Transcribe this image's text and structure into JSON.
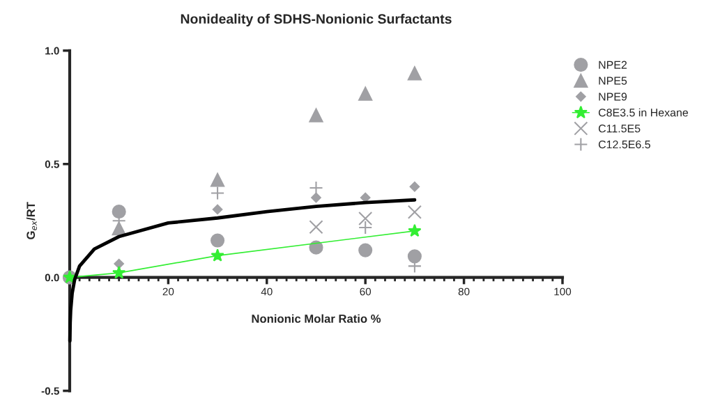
{
  "chart_data": {
    "type": "scatter",
    "title": "Nonideality of SDHS-Nonionic Surfactants",
    "xlabel": "Nonionic Molar Ratio %",
    "ylabel": "G$_{ex}$/RT",
    "xlim": [
      0,
      100
    ],
    "xticks": [
      20,
      40,
      60,
      80,
      100
    ],
    "ylim": [
      -0.5,
      1.0
    ],
    "yticks": [
      {
        "value": -0.5,
        "label": "-0.5"
      },
      {
        "value": 0,
        "label": "0.0"
      },
      {
        "value": 0.5,
        "label": "0.5"
      },
      {
        "value": 1.0,
        "label": "1.0"
      }
    ],
    "grid": false,
    "legend": "top right",
    "series": [
      {
        "name": "NPE2",
        "marker": "circle",
        "color": "#a0a0a4",
        "x": [
          0,
          10,
          30,
          50,
          60,
          70
        ],
        "values": [
          0,
          0.29,
          0.163,
          0.132,
          0.12,
          0.093
        ]
      },
      {
        "name": "NPE5",
        "marker": "triangle",
        "color": "#a0a0a4",
        "x": [
          10,
          30,
          50,
          60,
          70
        ],
        "values": [
          0.216,
          0.43,
          0.715,
          0.81,
          0.9
        ]
      },
      {
        "name": "NPE9",
        "marker": "diamond",
        "color": "#a0a0a4",
        "x": [
          10,
          30,
          50,
          60,
          70
        ],
        "values": [
          0.06,
          0.3,
          0.352,
          0.352,
          0.4
        ]
      },
      {
        "name": "C8E3.5 in Hexane",
        "type": "line",
        "marker": "star",
        "color": "#33ee33",
        "x": [
          0,
          10,
          30,
          70
        ],
        "values": [
          0,
          0.02,
          0.096,
          0.205
        ]
      },
      {
        "name": "C11.5E5",
        "marker": "cross",
        "color": "#a0a0a4",
        "x": [
          50,
          60,
          70
        ],
        "values": [
          0.222,
          0.26,
          0.288
        ]
      },
      {
        "name": "C12.5E6.5",
        "marker": "plus",
        "color": "#a0a0a4",
        "x": [
          10,
          30,
          50,
          60,
          70
        ],
        "values": [
          0.25,
          0.372,
          0.395,
          0.22,
          0.05
        ]
      },
      {
        "type": "line",
        "marker": "none",
        "color": "#000000",
        "x": [
          0.04,
          0.1,
          0.2,
          0.5,
          1,
          2,
          5,
          10,
          20,
          30,
          40,
          50,
          60,
          70
        ],
        "values": [
          -0.28,
          -0.2,
          -0.145,
          -0.07,
          -0.01,
          0.05,
          0.125,
          0.18,
          0.24,
          0.262,
          0.29,
          0.313,
          0.33,
          0.342
        ]
      }
    ]
  }
}
